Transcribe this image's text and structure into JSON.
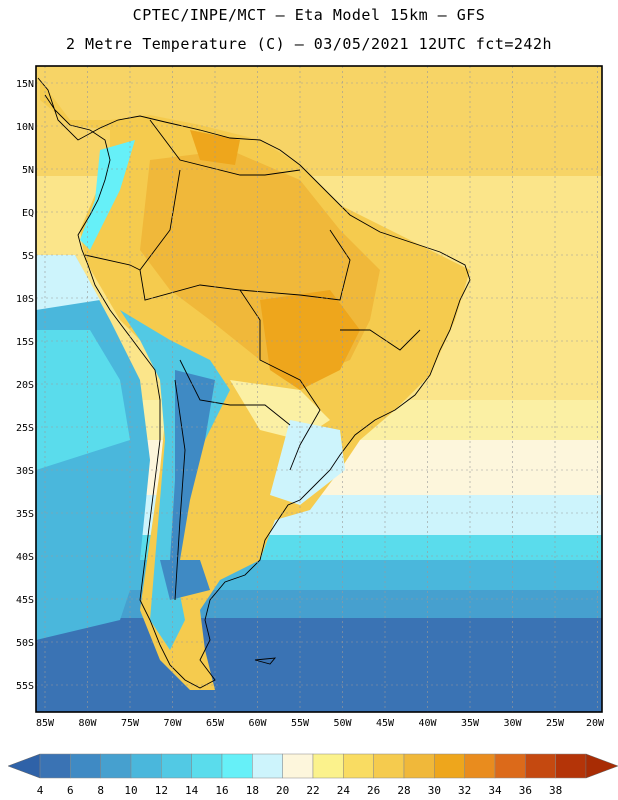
{
  "header": {
    "line1": "CPTEC/INPE/MCT –  Eta Model 15km – GFS",
    "line2": "2 Metre Temperature (C) – 03/05/2021 12UTC fct=242h"
  },
  "map": {
    "lat_ticks": [
      "15N",
      "10N",
      "5N",
      "EQ",
      "5S",
      "10S",
      "15S",
      "20S",
      "25S",
      "30S",
      "35S",
      "40S",
      "45S",
      "50S",
      "55S"
    ],
    "lon_ticks": [
      "85W",
      "80W",
      "75W",
      "70W",
      "65W",
      "60W",
      "55W",
      "50W",
      "45W",
      "40W",
      "35W",
      "30W",
      "25W",
      "20W"
    ]
  },
  "colorbar": {
    "labels": [
      "4",
      "6",
      "8",
      "10",
      "12",
      "14",
      "16",
      "18",
      "20",
      "22",
      "24",
      "26",
      "28",
      "30",
      "32",
      "34",
      "36",
      "38"
    ],
    "colors": [
      "#3a73b4",
      "#3f8ac4",
      "#46a0cf",
      "#4ab7dc",
      "#52c9e4",
      "#5adcec",
      "#66f0f8",
      "#cdf4fc",
      "#fdf6dc",
      "#fbf28c",
      "#f9dc62",
      "#f5cb4e",
      "#f0b83a",
      "#eea61c",
      "#e98c1e",
      "#dc6a1a",
      "#c54910",
      "#b43408"
    ],
    "end_low_color": "#2f62a8",
    "end_high_color": "#a82c04"
  }
}
